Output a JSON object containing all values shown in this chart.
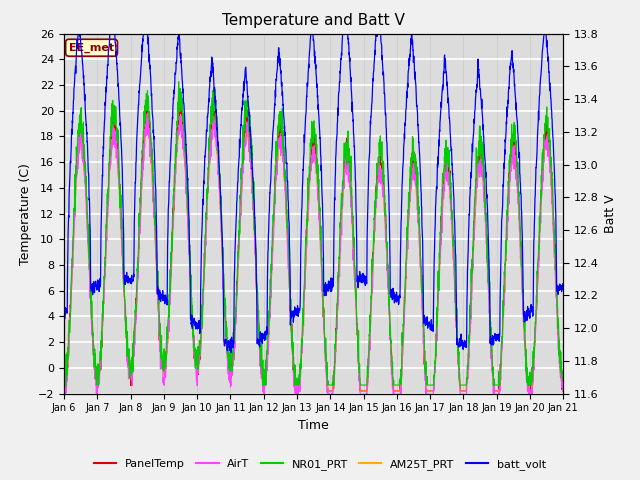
{
  "title": "Temperature and Batt V",
  "xlabel": "Time",
  "ylabel_left": "Temperature (C)",
  "ylabel_right": "Batt V",
  "ylim_left": [
    -2,
    26
  ],
  "ylim_right": [
    11.6,
    13.8
  ],
  "yticks_left": [
    -2,
    0,
    2,
    4,
    6,
    8,
    10,
    12,
    14,
    16,
    18,
    20,
    22,
    24,
    26
  ],
  "yticks_right": [
    11.6,
    11.8,
    12.0,
    12.2,
    12.4,
    12.6,
    12.8,
    13.0,
    13.2,
    13.4,
    13.6,
    13.8
  ],
  "xtick_labels": [
    "Jan 6",
    "Jan 7",
    "Jan 8",
    "Jan 9",
    "Jan 10",
    "Jan 11",
    "Jan 12",
    "Jan 13",
    "Jan 14",
    "Jan 15",
    "Jan 16",
    "Jan 17",
    "Jan 18",
    "Jan 19",
    "Jan 20",
    "Jan 21"
  ],
  "annotation_text": "EE_met",
  "series_colors": {
    "PanelTemp": "#dd0000",
    "AirT": "#ff44ff",
    "NR01_PRT": "#00cc00",
    "AM25T_PRT": "#ffaa00",
    "batt_volt": "#0000ff"
  },
  "background_color": "#dcdcdc",
  "grid_color": "#ffffff",
  "n_points": 2160
}
